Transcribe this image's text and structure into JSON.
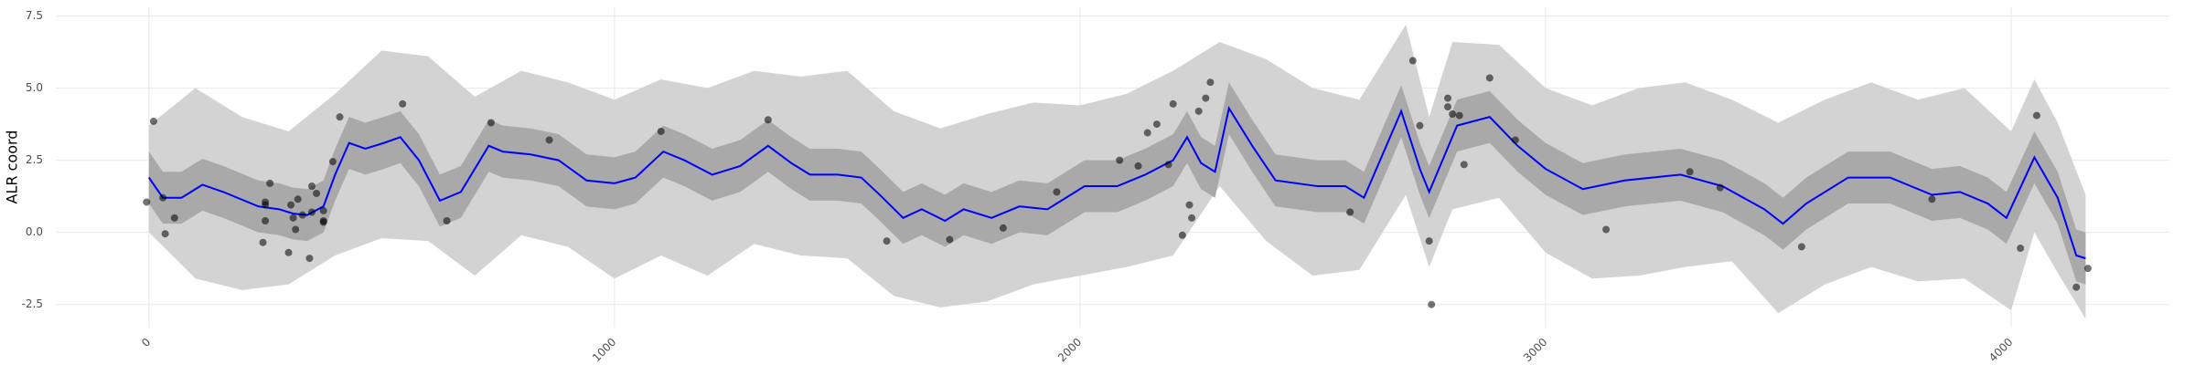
{
  "chart_data": {
    "type": "line",
    "y_label": "ALR coord",
    "xlim": [
      -200,
      4340
    ],
    "ylim": [
      -3.3,
      7.8
    ],
    "xticks": [
      0,
      1000,
      2000,
      3000,
      4000
    ],
    "yticks": [
      -2.5,
      {
        "value": 0,
        "label": "0.0"
      },
      2.5,
      {
        "value": 5,
        "label": "5.0"
      },
      7.5
    ],
    "grid": true,
    "bands": [
      {
        "color": "#d3d3d3",
        "x": [
          0,
          100,
          200,
          300,
          400,
          500,
          600,
          700,
          800,
          900,
          1000,
          1100,
          1200,
          1300,
          1400,
          1500,
          1600,
          1700,
          1800,
          1900,
          2000,
          2100,
          2200,
          2300,
          2400,
          2500,
          2600,
          2700,
          2750,
          2800,
          2900,
          3000,
          3100,
          3200,
          3300,
          3400,
          3500,
          3600,
          3700,
          3800,
          3900,
          4000,
          4050,
          4100,
          4160
        ],
        "lower": [
          0.0,
          -1.6,
          -2.0,
          -1.8,
          -0.8,
          -0.2,
          -0.3,
          -1.5,
          -0.1,
          -0.5,
          -1.6,
          -0.8,
          -1.5,
          -0.4,
          -0.8,
          -0.9,
          -2.2,
          -2.6,
          -2.4,
          -1.8,
          -1.5,
          -1.2,
          -0.8,
          1.6,
          -0.3,
          -1.5,
          -1.3,
          1.3,
          -1.2,
          0.8,
          1.2,
          -0.7,
          -1.6,
          -1.5,
          -1.2,
          -1.0,
          -2.8,
          -1.8,
          -1.2,
          -1.7,
          -1.6,
          -2.7,
          0.0,
          -1.4,
          -3.0
        ],
        "upper": [
          3.7,
          5.0,
          4.0,
          3.5,
          4.8,
          6.3,
          6.1,
          4.7,
          5.6,
          5.2,
          4.6,
          5.3,
          5.0,
          5.6,
          5.4,
          5.6,
          4.2,
          3.6,
          4.1,
          4.5,
          4.4,
          4.8,
          5.6,
          6.6,
          6.0,
          5.0,
          4.6,
          7.2,
          4.0,
          6.6,
          6.5,
          5.0,
          4.4,
          5.0,
          5.2,
          4.6,
          3.8,
          4.6,
          5.2,
          4.6,
          5.0,
          3.5,
          5.3,
          3.8,
          1.3
        ]
      },
      {
        "color": "#a9a9a9",
        "x": [
          0,
          30,
          70,
          115,
          160,
          235,
          280,
          310,
          340,
          375,
          400,
          430,
          465,
          505,
          540,
          580,
          625,
          670,
          730,
          760,
          820,
          880,
          940,
          1000,
          1045,
          1105,
          1150,
          1210,
          1270,
          1330,
          1380,
          1420,
          1480,
          1530,
          1570,
          1620,
          1660,
          1710,
          1750,
          1810,
          1870,
          1930,
          2010,
          2080,
          2140,
          2200,
          2230,
          2260,
          2290,
          2320,
          2370,
          2420,
          2510,
          2570,
          2610,
          2690,
          2730,
          2750,
          2810,
          2880,
          2940,
          3000,
          3080,
          3170,
          3290,
          3380,
          3470,
          3510,
          3560,
          3650,
          3740,
          3830,
          3890,
          3950,
          3990,
          4050,
          4100,
          4140,
          4160
        ],
        "lower": [
          1.0,
          0.3,
          0.3,
          0.75,
          0.5,
          0.0,
          -0.1,
          -0.25,
          -0.3,
          0.0,
          1.1,
          2.2,
          2.0,
          2.2,
          2.4,
          1.6,
          0.2,
          0.5,
          2.1,
          1.9,
          1.8,
          1.6,
          0.9,
          0.8,
          1.0,
          1.9,
          1.6,
          1.1,
          1.4,
          2.1,
          1.5,
          1.1,
          1.1,
          1.0,
          0.4,
          -0.4,
          -0.1,
          -0.5,
          -0.1,
          -0.4,
          0.0,
          -0.1,
          0.7,
          0.7,
          1.1,
          1.6,
          2.4,
          1.5,
          1.2,
          3.4,
          2.1,
          0.9,
          0.7,
          0.7,
          0.3,
          3.3,
          1.3,
          0.5,
          2.8,
          3.1,
          2.1,
          1.3,
          0.6,
          0.9,
          1.1,
          0.7,
          -0.1,
          -0.6,
          0.1,
          1.0,
          1.0,
          0.4,
          0.5,
          0.1,
          -0.4,
          1.7,
          0.3,
          -1.7,
          -1.8
        ],
        "upper": [
          2.8,
          2.1,
          2.1,
          2.55,
          2.3,
          1.8,
          1.7,
          1.55,
          1.5,
          1.8,
          2.9,
          4.0,
          3.8,
          4.0,
          4.2,
          3.4,
          2.0,
          2.3,
          3.9,
          3.7,
          3.6,
          3.4,
          2.7,
          2.6,
          2.8,
          3.7,
          3.4,
          2.9,
          3.2,
          3.9,
          3.3,
          2.9,
          2.9,
          2.8,
          2.2,
          1.4,
          1.7,
          1.3,
          1.7,
          1.4,
          1.8,
          1.7,
          2.5,
          2.5,
          2.9,
          3.4,
          4.2,
          3.3,
          3.0,
          5.2,
          3.9,
          2.7,
          2.5,
          2.5,
          2.1,
          5.1,
          3.1,
          2.3,
          4.6,
          4.9,
          3.9,
          3.1,
          2.4,
          2.7,
          2.9,
          2.5,
          1.7,
          1.2,
          1.9,
          2.8,
          2.8,
          2.2,
          2.3,
          1.9,
          1.4,
          3.5,
          2.1,
          0.1,
          0.0
        ]
      }
    ],
    "series": [
      {
        "color": "#0000ff",
        "x": [
          0,
          30,
          70,
          115,
          160,
          235,
          280,
          310,
          340,
          375,
          400,
          430,
          465,
          505,
          540,
          580,
          625,
          670,
          730,
          760,
          820,
          880,
          940,
          1000,
          1045,
          1105,
          1150,
          1210,
          1270,
          1330,
          1380,
          1420,
          1480,
          1530,
          1570,
          1620,
          1660,
          1710,
          1750,
          1810,
          1870,
          1930,
          2010,
          2080,
          2140,
          2200,
          2230,
          2260,
          2290,
          2320,
          2370,
          2420,
          2510,
          2570,
          2610,
          2690,
          2730,
          2750,
          2810,
          2880,
          2940,
          3000,
          3080,
          3170,
          3290,
          3380,
          3470,
          3510,
          3560,
          3650,
          3740,
          3830,
          3890,
          3950,
          3990,
          4050,
          4100,
          4140,
          4160
        ],
        "values": [
          1.9,
          1.2,
          1.2,
          1.65,
          1.4,
          0.9,
          0.8,
          0.65,
          0.6,
          0.9,
          2.0,
          3.1,
          2.9,
          3.1,
          3.3,
          2.5,
          1.1,
          1.4,
          3.0,
          2.8,
          2.7,
          2.5,
          1.8,
          1.7,
          1.9,
          2.8,
          2.5,
          2.0,
          2.3,
          3.0,
          2.4,
          2.0,
          2.0,
          1.9,
          1.3,
          0.5,
          0.8,
          0.4,
          0.8,
          0.5,
          0.9,
          0.8,
          1.6,
          1.6,
          2.0,
          2.5,
          3.3,
          2.4,
          2.1,
          4.3,
          3.0,
          1.8,
          1.6,
          1.6,
          1.2,
          4.2,
          2.2,
          1.4,
          3.7,
          4.0,
          3.0,
          2.2,
          1.5,
          1.8,
          2.0,
          1.6,
          0.8,
          0.3,
          1.0,
          1.9,
          1.9,
          1.3,
          1.4,
          1.0,
          0.5,
          2.6,
          1.2,
          -0.8,
          -0.9
        ]
      }
    ],
    "points": {
      "color": "#000000",
      "opacity": 0.55,
      "x": [
        -5,
        10,
        30,
        35,
        55,
        245,
        250,
        250,
        260,
        250,
        300,
        305,
        310,
        315,
        320,
        330,
        345,
        350,
        350,
        360,
        375,
        375,
        375,
        395,
        410,
        545,
        640,
        735,
        860,
        1100,
        1330,
        1585,
        1720,
        1835,
        1950,
        2085,
        2125,
        2145,
        2165,
        2190,
        2200,
        2220,
        2235,
        2240,
        2255,
        2270,
        2280,
        2580,
        2715,
        2730,
        2750,
        2755,
        2790,
        2790,
        2800,
        2815,
        2825,
        2880,
        2935,
        3130,
        3310,
        3375,
        3550,
        3830,
        4020,
        4055,
        4140,
        4165
      ],
      "y": [
        1.05,
        3.85,
        1.2,
        -0.05,
        0.5,
        -0.35,
        0.4,
        1.05,
        1.7,
        0.95,
        -0.7,
        0.95,
        0.5,
        0.1,
        1.15,
        0.6,
        -0.9,
        0.7,
        1.6,
        1.35,
        0.4,
        0.75,
        0.35,
        2.45,
        4.0,
        4.45,
        0.4,
        3.8,
        3.2,
        3.5,
        3.9,
        -0.3,
        -0.25,
        0.15,
        1.4,
        2.5,
        2.3,
        3.45,
        3.75,
        2.35,
        4.45,
        -0.1,
        0.95,
        0.5,
        4.2,
        4.65,
        5.2,
        0.7,
        5.95,
        3.7,
        -0.3,
        -2.5,
        4.65,
        4.35,
        4.1,
        4.05,
        2.35,
        5.35,
        3.2,
        0.1,
        2.1,
        1.55,
        -0.5,
        1.15,
        -0.55,
        4.05,
        -1.9,
        -1.25
      ]
    }
  }
}
